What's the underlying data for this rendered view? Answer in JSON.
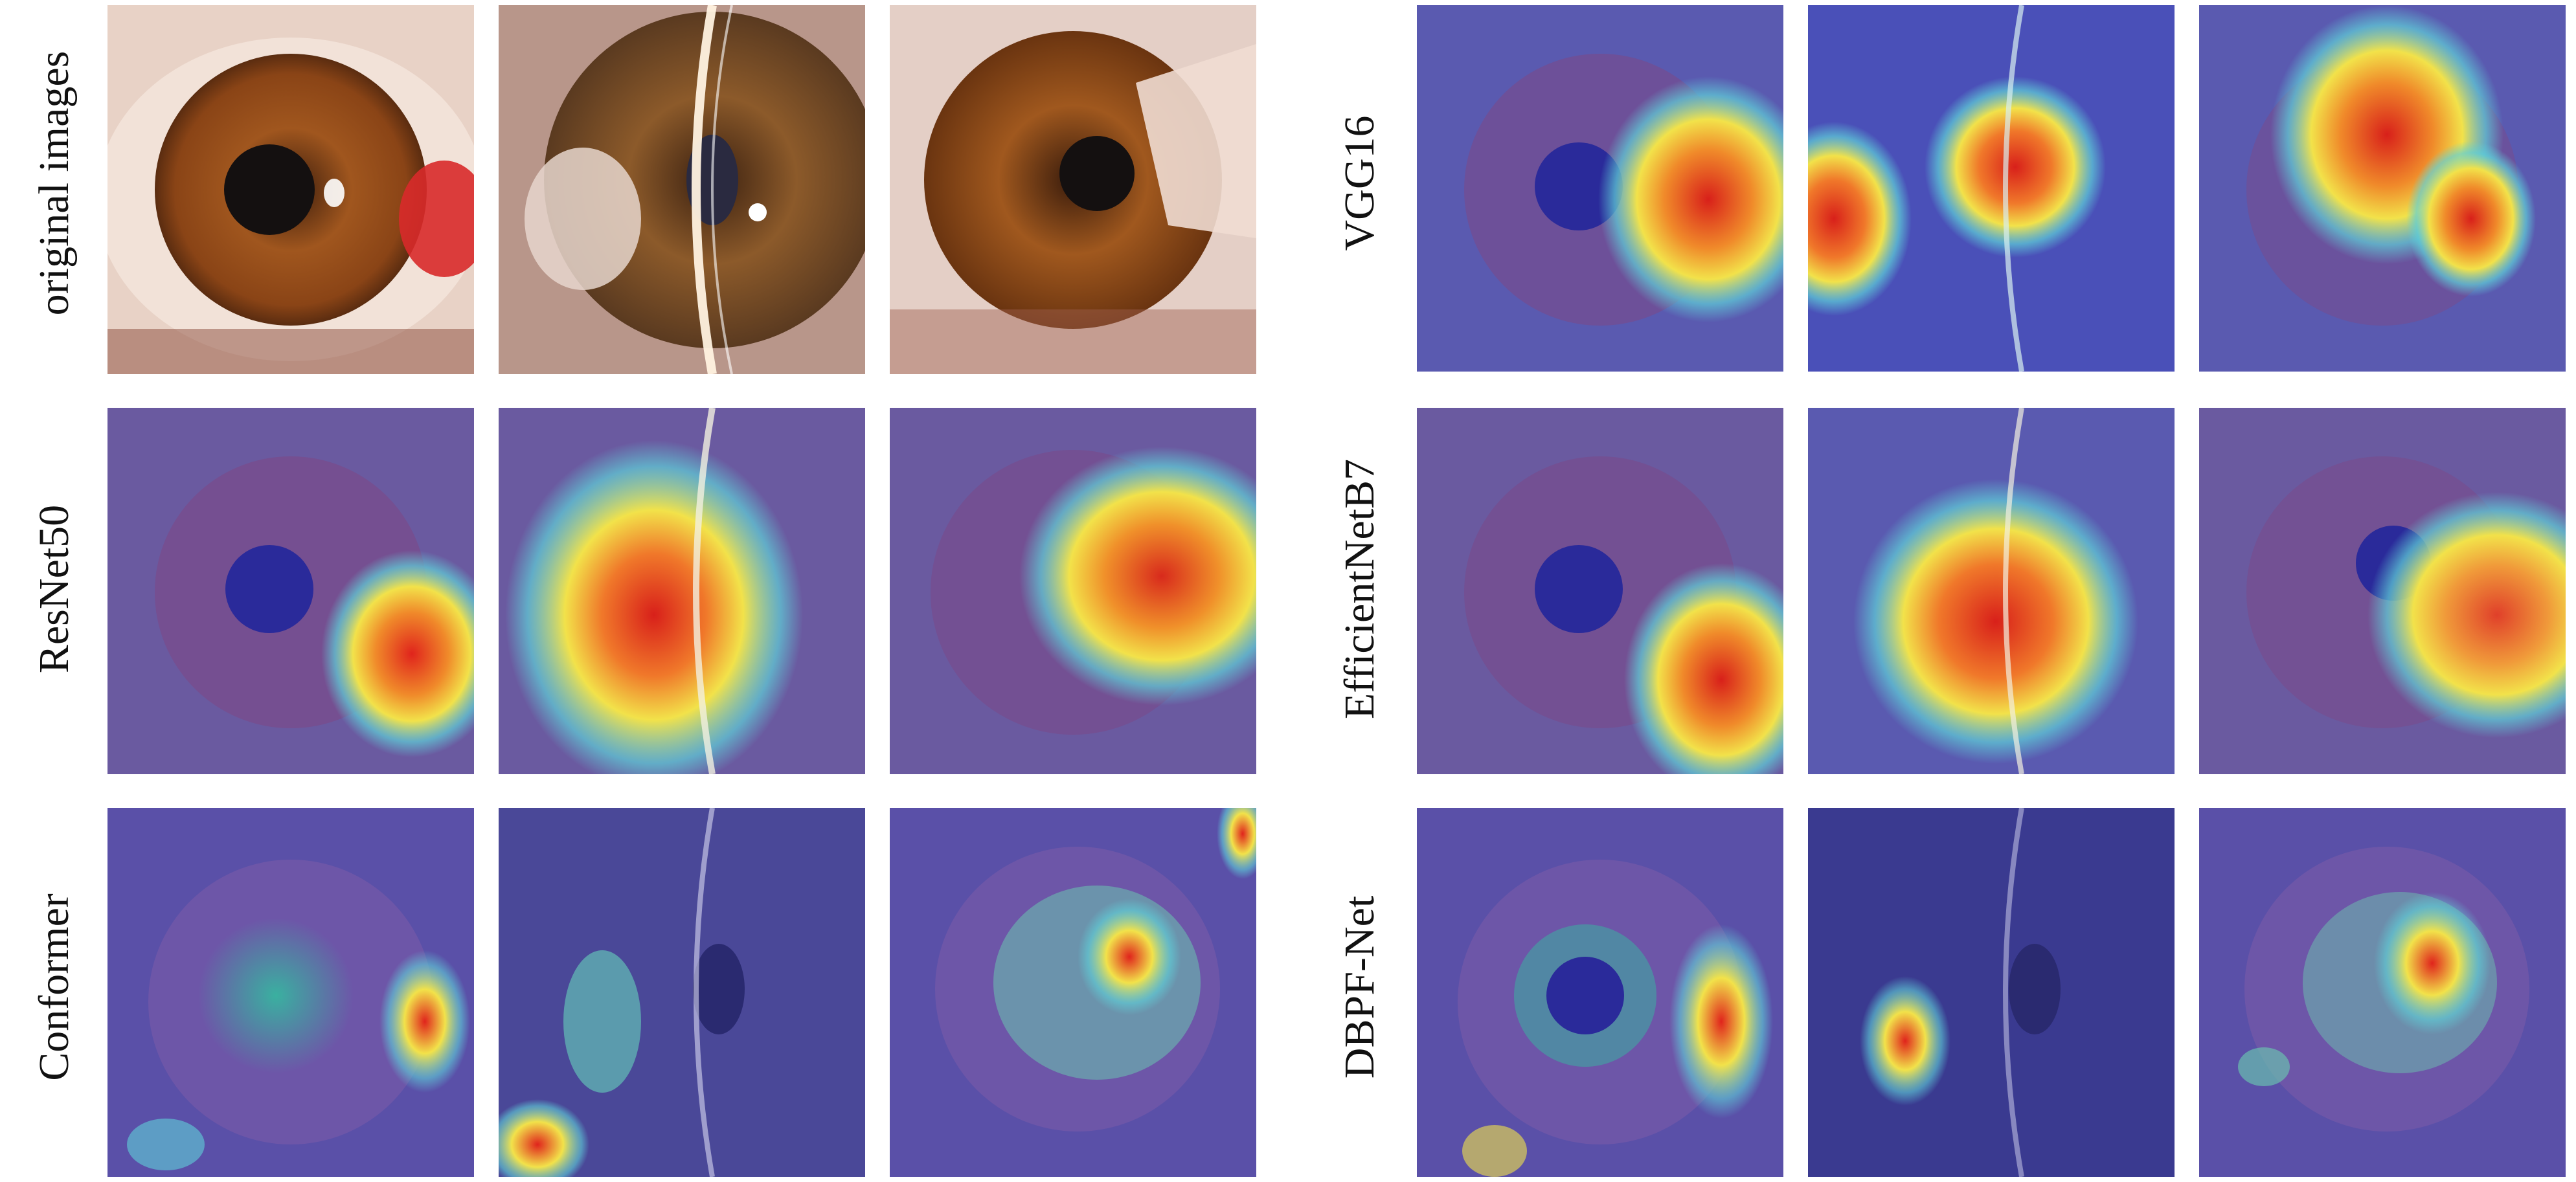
{
  "row_labels_left": [
    "original images",
    "ResNet50",
    "Conformer"
  ],
  "row_labels_right": [
    "VGG16",
    "EfficientNetB7",
    "DBPF-Net"
  ],
  "panels": {
    "left": [
      [
        "original-photo",
        "original-photo-slit",
        "original-photo-lesion"
      ],
      [
        "heatmap",
        "heatmap",
        "heatmap"
      ],
      [
        "heatmap",
        "heatmap",
        "heatmap"
      ]
    ],
    "right": [
      [
        "heatmap",
        "heatmap",
        "heatmap"
      ],
      [
        "heatmap",
        "heatmap",
        "heatmap"
      ],
      [
        "heatmap",
        "heatmap",
        "heatmap"
      ]
    ]
  },
  "colors": {
    "iris_brown": "#8a4a1c",
    "pupil": "#151010",
    "sclera": "#e9d6cc",
    "overlay_blue": "#5a5ab8",
    "hot_red": "#e0241c",
    "warm_yellow": "#f2e24a",
    "cyan": "#5fd0d8"
  }
}
